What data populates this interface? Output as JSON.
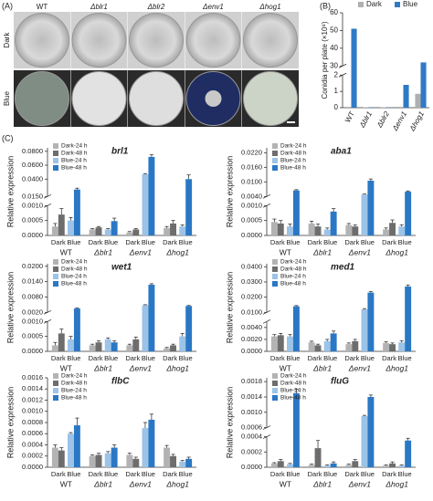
{
  "panels": {
    "a": "(A)",
    "b": "(B)",
    "c": "(C)"
  },
  "panel_a": {
    "columns": [
      "WT",
      "Δblr1",
      "Δblr2",
      "Δenv1",
      "Δhog1"
    ],
    "rows": [
      "Dark",
      "Blue"
    ]
  },
  "chart_data": [
    {
      "type": "bar",
      "ylabel": "Conidia per plate (×10⁸)",
      "groups": [
        "WT",
        "Δblr1",
        "Δblr2",
        "Δenv1",
        "Δhog1"
      ],
      "series": [
        {
          "name": "Dark",
          "color": "#b0b0b0",
          "values": [
            0.05,
            0.03,
            0.03,
            0.05,
            0.85
          ]
        },
        {
          "name": "Blue",
          "color": "#2f7ac6",
          "values": [
            51,
            0.02,
            0.02,
            1.4,
            32
          ]
        }
      ],
      "y_segments": [
        {
          "ylim": [
            0,
            2
          ],
          "yticks": [
            0,
            1,
            2
          ]
        },
        {
          "ylim": [
            30,
            60
          ],
          "yticks": [
            30,
            40,
            50,
            60
          ]
        }
      ]
    },
    {
      "type": "bar",
      "title": "brl1",
      "ylabel": "Relative expression",
      "groups": [
        "WT",
        "Δblr1",
        "Δenv1",
        "Δhog1"
      ],
      "subgroups": [
        "Dark",
        "Blue"
      ],
      "series": [
        {
          "name": "Dark-24 h",
          "color": "#b3b3b3",
          "values": [
            0.0003,
            0.0002,
            0.0001,
            0.00025
          ],
          "errors": [
            0.0001,
            3e-05,
            3e-05,
            5e-05
          ]
        },
        {
          "name": "Dark-48 h",
          "color": "#6d6d6d",
          "values": [
            0.0007,
            0.00027,
            0.0002,
            0.0004
          ],
          "errors": [
            0.0002,
            3e-05,
            3e-05,
            0.0001
          ]
        },
        {
          "name": "Blue-24 h",
          "color": "#9cc3e8",
          "values": [
            0.0005,
            0.0002,
            0.047,
            0.0003
          ],
          "errors": [
            0.0001,
            3e-05,
            0.001,
            5e-05
          ]
        },
        {
          "name": "Blue-48 h",
          "color": "#2a78c5",
          "values": [
            0.025,
            0.00048,
            0.072,
            0.04
          ],
          "errors": [
            0.002,
            0.0001,
            0.003,
            0.006
          ]
        }
      ],
      "y_segments": [
        {
          "ylim": [
            0,
            0.001
          ],
          "yticks": [
            {
              "value": 0,
              "label": "0.0000"
            },
            {
              "value": 0.0005,
              "label": "0.0005"
            },
            {
              "value": 0.001,
              "label": "0.0010"
            }
          ]
        },
        {
          "ylim": [
            0.015,
            0.085
          ],
          "yticks": [
            {
              "value": 0.015,
              "label": "0.0150"
            },
            {
              "value": 0.04,
              "label": "0.0400"
            },
            {
              "value": 0.06,
              "label": "0.0600"
            },
            {
              "value": 0.08,
              "label": "0.0800"
            }
          ]
        }
      ]
    },
    {
      "type": "bar",
      "title": "aba1",
      "ylabel": "Relative expression",
      "groups": [
        "WT",
        "Δblr1",
        "Δenv1",
        "Δhog1"
      ],
      "subgroups": [
        "Dark",
        "Blue"
      ],
      "series": [
        {
          "name": "Dark-24 h",
          "color": "#b3b3b3",
          "values": [
            0.00045,
            0.0004,
            0.00035,
            0.0002
          ],
          "errors": [
            0.0001,
            8e-05,
            5e-05,
            5e-05
          ]
        },
        {
          "name": "Dark-48 h",
          "color": "#6d6d6d",
          "values": [
            0.0004,
            0.0003,
            0.0003,
            0.00042
          ],
          "errors": [
            0.0001,
            8e-05,
            5e-05,
            0.0001
          ]
        },
        {
          "name": "Blue-24 h",
          "color": "#9cc3e8",
          "values": [
            0.0003,
            0.0002,
            0.0048,
            0.0003
          ],
          "errors": [
            8e-05,
            5e-05,
            0.0002,
            6e-05
          ]
        },
        {
          "name": "Blue-48 h",
          "color": "#2a78c5",
          "values": [
            0.0065,
            0.0008,
            0.0105,
            0.006
          ],
          "errors": [
            0.0003,
            0.0001,
            0.0007,
            0.0003
          ]
        }
      ],
      "y_segments": [
        {
          "ylim": [
            0,
            0.001
          ],
          "yticks": [
            {
              "value": 0,
              "label": "0.0000"
            },
            {
              "value": 0.0005,
              "label": "0.0005"
            },
            {
              "value": 0.001,
              "label": "0.0010"
            }
          ]
        },
        {
          "ylim": [
            0.004,
            0.024
          ],
          "yticks": [
            {
              "value": 0.004,
              "label": "0.0040"
            },
            {
              "value": 0.01,
              "label": "0.0100"
            },
            {
              "value": 0.016,
              "label": "0.0160"
            },
            {
              "value": 0.022,
              "label": "0.0220"
            }
          ]
        }
      ]
    },
    {
      "type": "bar",
      "title": "wet1",
      "ylabel": "Relative expression",
      "groups": [
        "WT",
        "Δblr1",
        "Δenv1",
        "Δhog1"
      ],
      "subgroups": [
        "Dark",
        "Blue"
      ],
      "series": [
        {
          "name": "Dark-24 h",
          "color": "#b3b3b3",
          "values": [
            0.0002,
            0.0002,
            0.0002,
            0.0001
          ],
          "errors": [
            0.0001,
            4e-05,
            4e-05,
            3e-05
          ]
        },
        {
          "name": "Dark-48 h",
          "color": "#6d6d6d",
          "values": [
            0.0006,
            0.0003,
            0.0004,
            0.0002
          ],
          "errors": [
            0.00015,
            5e-05,
            8e-05,
            4e-05
          ]
        },
        {
          "name": "Blue-24 h",
          "color": "#9cc3e8",
          "values": [
            0.0004,
            0.0004,
            0.0048,
            0.0005
          ],
          "errors": [
            0.0001,
            5e-05,
            0.0002,
            0.0001
          ]
        },
        {
          "name": "Blue-48 h",
          "color": "#2a78c5",
          "values": [
            0.0035,
            0.0003,
            0.0128,
            0.0045
          ],
          "errors": [
            0.0002,
            5e-05,
            0.0004,
            0.0002
          ]
        }
      ],
      "y_segments": [
        {
          "ylim": [
            0,
            0.001
          ],
          "yticks": [
            {
              "value": 0,
              "label": "0.0000"
            },
            {
              "value": 0.0005,
              "label": "0.0005"
            },
            {
              "value": 0.001,
              "label": "0.0010"
            }
          ]
        },
        {
          "ylim": [
            0.002,
            0.021
          ],
          "yticks": [
            {
              "value": 0.002,
              "label": "0.0020"
            },
            {
              "value": 0.008,
              "label": "0.0080"
            },
            {
              "value": 0.014,
              "label": "0.0140"
            },
            {
              "value": 0.02,
              "label": "0.0200"
            }
          ]
        }
      ]
    },
    {
      "type": "bar",
      "title": "med1",
      "ylabel": "Relative expression",
      "groups": [
        "WT",
        "Δblr1",
        "Δenv1",
        "Δhog1"
      ],
      "subgroups": [
        "Dark",
        "Blue"
      ],
      "series": [
        {
          "name": "Dark-24 h",
          "color": "#b3b3b3",
          "values": [
            0.0025,
            0.0015,
            0.0012,
            0.0014
          ],
          "errors": [
            0.0003,
            0.0002,
            0.0002,
            0.0002
          ]
        },
        {
          "name": "Dark-48 h",
          "color": "#6d6d6d",
          "values": [
            0.0027,
            0.001,
            0.0017,
            0.0012
          ],
          "errors": [
            0.0003,
            0.0002,
            0.0003,
            0.0002
          ]
        },
        {
          "name": "Blue-24 h",
          "color": "#9cc3e8",
          "values": [
            0.0025,
            0.0017,
            0.012,
            0.0015
          ],
          "errors": [
            0.0003,
            0.0003,
            0.0005,
            0.0003
          ]
        },
        {
          "name": "Blue-48 h",
          "color": "#2a78c5",
          "values": [
            0.014,
            0.003,
            0.023,
            0.027
          ],
          "errors": [
            0.0005,
            0.0004,
            0.0008,
            0.001
          ]
        }
      ],
      "y_segments": [
        {
          "ylim": [
            0,
            0.005
          ],
          "yticks": [
            {
              "value": 0,
              "label": "0.0000"
            },
            {
              "value": 0.002,
              "label": "0.0020"
            },
            {
              "value": 0.004,
              "label": "0.0040"
            }
          ]
        },
        {
          "ylim": [
            0.01,
            0.042
          ],
          "yticks": [
            {
              "value": 0.01,
              "label": "0.0100"
            },
            {
              "value": 0.02,
              "label": "0.0200"
            },
            {
              "value": 0.03,
              "label": "0.0300"
            },
            {
              "value": 0.04,
              "label": "0.0400"
            }
          ]
        }
      ]
    },
    {
      "type": "bar",
      "title": "flbC",
      "ylabel": "Relative expression",
      "groups": [
        "WT",
        "Δblr1",
        "Δenv1",
        "Δhog1"
      ],
      "subgroups": [
        "Dark",
        "Blue"
      ],
      "series": [
        {
          "name": "Dark-24 h",
          "color": "#b3b3b3",
          "values": [
            0.00035,
            0.0002,
            0.00022,
            0.00035
          ],
          "errors": [
            5e-05,
            2e-05,
            3e-05,
            4e-05
          ]
        },
        {
          "name": "Dark-48 h",
          "color": "#6d6d6d",
          "values": [
            0.0003,
            0.00022,
            0.00015,
            0.0002
          ],
          "errors": [
            5e-05,
            3e-05,
            3e-05,
            3e-05
          ]
        },
        {
          "name": "Blue-24 h",
          "color": "#9cc3e8",
          "values": [
            0.0006,
            0.00025,
            0.0007,
            0.0001
          ],
          "errors": [
            2e-05,
            3e-05,
            0.0001,
            2e-05
          ]
        },
        {
          "name": "Blue-48 h",
          "color": "#2a78c5",
          "values": [
            0.00075,
            0.00035,
            0.00085,
            0.00015
          ],
          "errors": [
            0.00013,
            5e-05,
            0.0001,
            3e-05
          ]
        }
      ],
      "y_segments": [
        {
          "ylim": [
            0,
            0.0016
          ],
          "yticks": [
            {
              "value": 0,
              "label": "0.0000"
            },
            {
              "value": 0.0002,
              "label": "0.0002"
            },
            {
              "value": 0.0004,
              "label": "0.0004"
            },
            {
              "value": 0.0006,
              "label": "0.0006"
            },
            {
              "value": 0.0008,
              "label": "0.0008"
            },
            {
              "value": 0.001,
              "label": "0.0010"
            },
            {
              "value": 0.0012,
              "label": "0.0012"
            },
            {
              "value": 0.0014,
              "label": "0.0014"
            },
            {
              "value": 0.0016,
              "label": "0.0016"
            }
          ]
        }
      ]
    },
    {
      "type": "bar",
      "title": "fluG",
      "ylabel": "Relative expression",
      "groups": [
        "WT",
        "Δblr1",
        "Δenv1",
        "Δhog1"
      ],
      "subgroups": [
        "Dark",
        "Blue"
      ],
      "series": [
        {
          "name": "Dark-24 h",
          "color": "#b3b3b3",
          "values": [
            5e-05,
            3e-05,
            3e-05,
            2e-05
          ],
          "errors": [
            1e-05,
            1e-05,
            1e-05,
            1e-05
          ]
        },
        {
          "name": "Dark-48 h",
          "color": "#6d6d6d",
          "values": [
            8e-05,
            0.00025,
            8e-05,
            5e-05
          ],
          "errors": [
            2e-05,
            0.0001,
            2e-05,
            2e-05
          ]
        },
        {
          "name": "Blue-24 h",
          "color": "#9cc3e8",
          "values": [
            4e-05,
            2e-05,
            0.0009,
            2e-05
          ],
          "errors": [
            1e-05,
            1e-05,
            2e-05,
            1e-05
          ]
        },
        {
          "name": "Blue-48 h",
          "color": "#2a78c5",
          "values": [
            0.0015,
            5e-05,
            0.0014,
            0.00035
          ],
          "errors": [
            0.0001,
            2e-05,
            5e-05,
            3e-05
          ]
        }
      ],
      "y_segments": [
        {
          "ylim": [
            0,
            0.0004
          ],
          "yticks": [
            {
              "value": 0,
              "label": "0.0000"
            },
            {
              "value": 0.0002,
              "label": "0.0002"
            },
            {
              "value": 0.0004,
              "label": "0.0004"
            }
          ]
        },
        {
          "ylim": [
            0.0006,
            0.0019
          ],
          "yticks": [
            {
              "value": 0.0006,
              "label": "0.0006"
            },
            {
              "value": 0.001,
              "label": "0.0010"
            },
            {
              "value": 0.0014,
              "label": "0.0014"
            },
            {
              "value": 0.0018,
              "label": "0.0018"
            }
          ]
        }
      ]
    }
  ]
}
